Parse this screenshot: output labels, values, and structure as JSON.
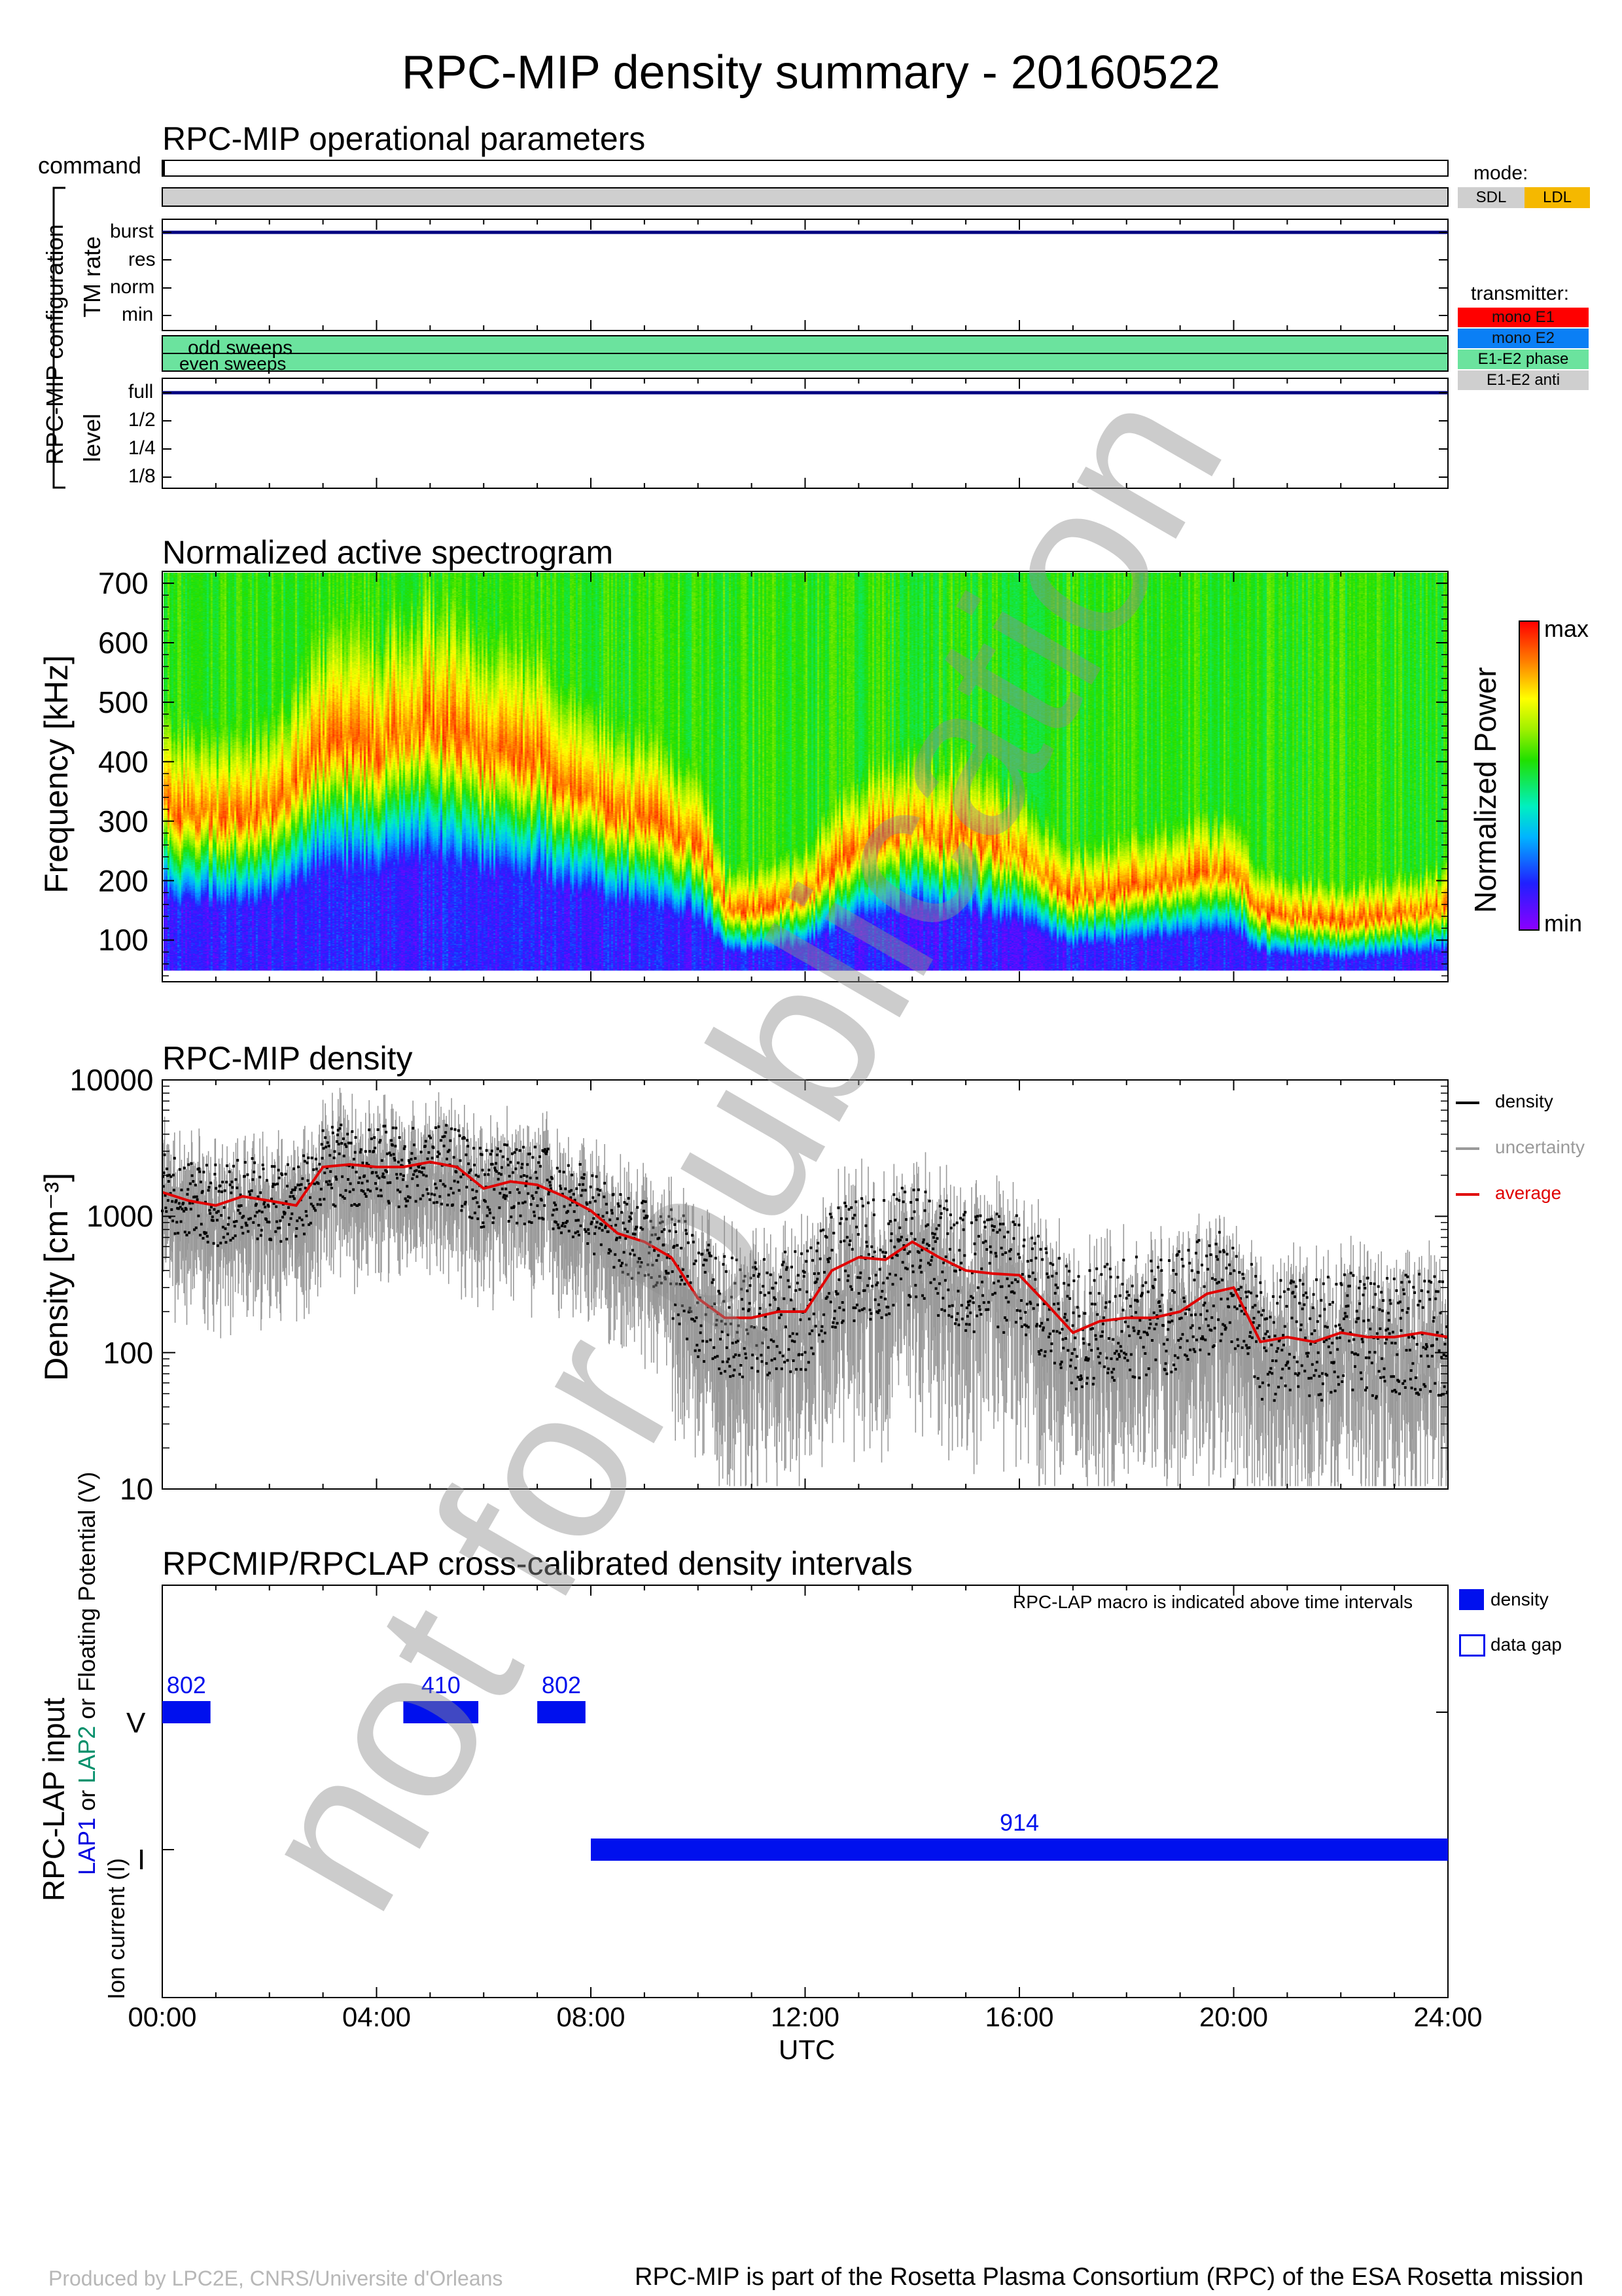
{
  "title": "RPC-MIP density summary - 20160522",
  "ops": {
    "title": "RPC-MIP operational parameters",
    "command_label": "command",
    "config_label": "RPC-MIP configuration",
    "tm_label": "TM rate",
    "tm_levels": [
      "burst",
      "res",
      "norm",
      "min"
    ],
    "sweeps": [
      "odd sweeps",
      "even sweeps"
    ],
    "level_label": "level",
    "levels": [
      "full",
      "1/2",
      "1/4",
      "1/8"
    ],
    "mode_title": "mode:",
    "modes": [
      {
        "label": "SDL",
        "color": "#cfcfcf"
      },
      {
        "label": "LDL",
        "color": "#f5b800"
      }
    ],
    "transmitter_title": "transmitter:",
    "transmitters": [
      {
        "label": "mono E1",
        "color": "#ff0000"
      },
      {
        "label": "mono E2",
        "color": "#0a7ff5"
      },
      {
        "label": "E1-E2 phase",
        "color": "#6be39e"
      },
      {
        "label": "E1-E2 anti",
        "color": "#cfcfcf"
      }
    ],
    "sweep_color": "#6be39e",
    "tm_selected": "burst",
    "level_selected": "full"
  },
  "spectrogram": {
    "title": "Normalized active spectrogram",
    "ylabel": "Frequency [kHz]",
    "yticks": [
      "700",
      "600",
      "500",
      "400",
      "300",
      "200",
      "100"
    ],
    "colorbar_label": "Normalized Power",
    "cb_max": "max",
    "cb_min": "min"
  },
  "density": {
    "title": "RPC-MIP density",
    "ylabel": "Density [cm⁻³]",
    "yticks": [
      "10000",
      "1000",
      "100",
      "10"
    ],
    "legend": [
      {
        "label": "density",
        "color": "#000000"
      },
      {
        "label": "uncertainty",
        "color": "#9a9a9a"
      },
      {
        "label": "average",
        "color": "#e00000"
      }
    ]
  },
  "lap": {
    "title": "RPCMIP/RPCLAP cross-calibrated density intervals",
    "note": "RPC-LAP macro is indicated above time intervals",
    "ylabel_main": "RPC-LAP input",
    "ylabel_lap1": "LAP1",
    "ylabel_or": "or",
    "ylabel_lap2": "LAP2",
    "ylabel_sub1": "or Floating Potential (V)",
    "ylabel_sub2": "Ion current (I)",
    "row_labels": [
      "V",
      "I"
    ],
    "legend_density": "density",
    "legend_gap": "data gap"
  },
  "xaxis": {
    "ticks": [
      "00:00",
      "04:00",
      "08:00",
      "12:00",
      "16:00",
      "20:00",
      "24:00"
    ],
    "label": "UTC"
  },
  "watermark": "not for publication",
  "footer_left": "Produced by LPC2E, CNRS/Universite d'Orleans",
  "footer_right": "RPC-MIP is part of the Rosetta Plasma Consortium (RPC) of the ESA Rosetta mission",
  "chart_data": [
    {
      "type": "heatmap",
      "title": "Normalized active spectrogram",
      "xlabel": "UTC",
      "ylabel": "Frequency [kHz]",
      "xlim": [
        0,
        24
      ],
      "ylim": [
        30,
        720
      ],
      "colorbar": "Normalized Power (min-max)",
      "peak_frequency_kHz": {
        "x": [
          0,
          1,
          2,
          3,
          4,
          5,
          6,
          7,
          8,
          9,
          10,
          10.5,
          11,
          12,
          13,
          14,
          15,
          16,
          17,
          18,
          19,
          20,
          20.5,
          21,
          22,
          23,
          24
        ],
        "y": [
          330,
          300,
          320,
          420,
          430,
          460,
          410,
          400,
          330,
          300,
          260,
          150,
          150,
          170,
          260,
          280,
          270,
          240,
          170,
          190,
          200,
          210,
          150,
          140,
          130,
          140,
          150
        ]
      }
    },
    {
      "type": "scatter",
      "title": "RPC-MIP density",
      "xlabel": "UTC",
      "ylabel": "Density [cm-3]",
      "yscale": "log",
      "ylim": [
        10,
        10000
      ],
      "xlim": [
        0,
        24
      ],
      "series": [
        {
          "name": "average",
          "x": [
            0,
            0.5,
            1,
            1.5,
            2,
            2.5,
            3,
            3.5,
            4,
            4.5,
            5,
            5.5,
            6,
            6.5,
            7,
            7.5,
            8,
            8.5,
            9,
            9.5,
            10,
            10.5,
            11,
            11.5,
            12,
            12.5,
            13,
            13.5,
            14,
            14.5,
            15,
            15.5,
            16,
            16.5,
            17,
            17.5,
            18,
            18.5,
            19,
            19.5,
            20,
            20.5,
            21,
            21.5,
            22,
            22.5,
            23,
            23.5,
            24
          ],
          "y": [
            1500,
            1300,
            1200,
            1400,
            1300,
            1200,
            2300,
            2400,
            2300,
            2300,
            2500,
            2300,
            1600,
            1800,
            1700,
            1400,
            1100,
            750,
            650,
            500,
            250,
            180,
            180,
            200,
            200,
            400,
            500,
            480,
            650,
            500,
            400,
            380,
            370,
            230,
            140,
            170,
            180,
            180,
            200,
            270,
            300,
            120,
            130,
            120,
            140,
            130,
            130,
            140,
            130
          ]
        }
      ]
    },
    {
      "type": "bar",
      "title": "RPCMIP/RPCLAP cross-calibrated density intervals",
      "xlabel": "UTC",
      "intervals": [
        {
          "row": "V",
          "start": 0.0,
          "end": 0.9,
          "macro": "802"
        },
        {
          "row": "V",
          "start": 4.5,
          "end": 5.9,
          "macro": "410"
        },
        {
          "row": "V",
          "start": 7.0,
          "end": 7.9,
          "macro": "802"
        },
        {
          "row": "I",
          "start": 8.0,
          "end": 24.0,
          "macro": "914"
        }
      ]
    }
  ]
}
